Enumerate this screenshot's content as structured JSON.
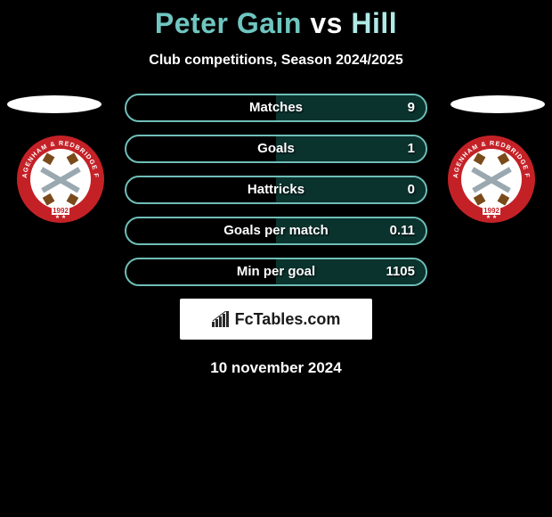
{
  "title": {
    "player1": "Peter Gain",
    "vs": "vs",
    "player2": "Hill",
    "player1_color": "#6fc6c0",
    "vs_color": "#ffffff",
    "player2_color": "#b0eae6"
  },
  "subtitle": "Club competitions, Season 2024/2025",
  "crest": {
    "outer_ring": "#c42127",
    "inner_bg": "#ffffff",
    "text_top": "DAGENHAM & REDBRIDGE FC",
    "year": "1992",
    "year_color": "#c42127",
    "swords_handle": "#7a4a1a",
    "swords_blade": "#9aa8b0"
  },
  "stats": {
    "bar_border": "#6fbeb8",
    "bar_fill": "#0b332e",
    "rows": [
      {
        "label": "Matches",
        "value": "9",
        "fill_pct": 50
      },
      {
        "label": "Goals",
        "value": "1",
        "fill_pct": 50
      },
      {
        "label": "Hattricks",
        "value": "0",
        "fill_pct": 50
      },
      {
        "label": "Goals per match",
        "value": "0.11",
        "fill_pct": 50
      },
      {
        "label": "Min per goal",
        "value": "1105",
        "fill_pct": 50
      }
    ]
  },
  "brand": {
    "text": "FcTables.com",
    "chart_color": "#2a2a2a"
  },
  "date": "10 november 2024",
  "background_color": "#000000"
}
